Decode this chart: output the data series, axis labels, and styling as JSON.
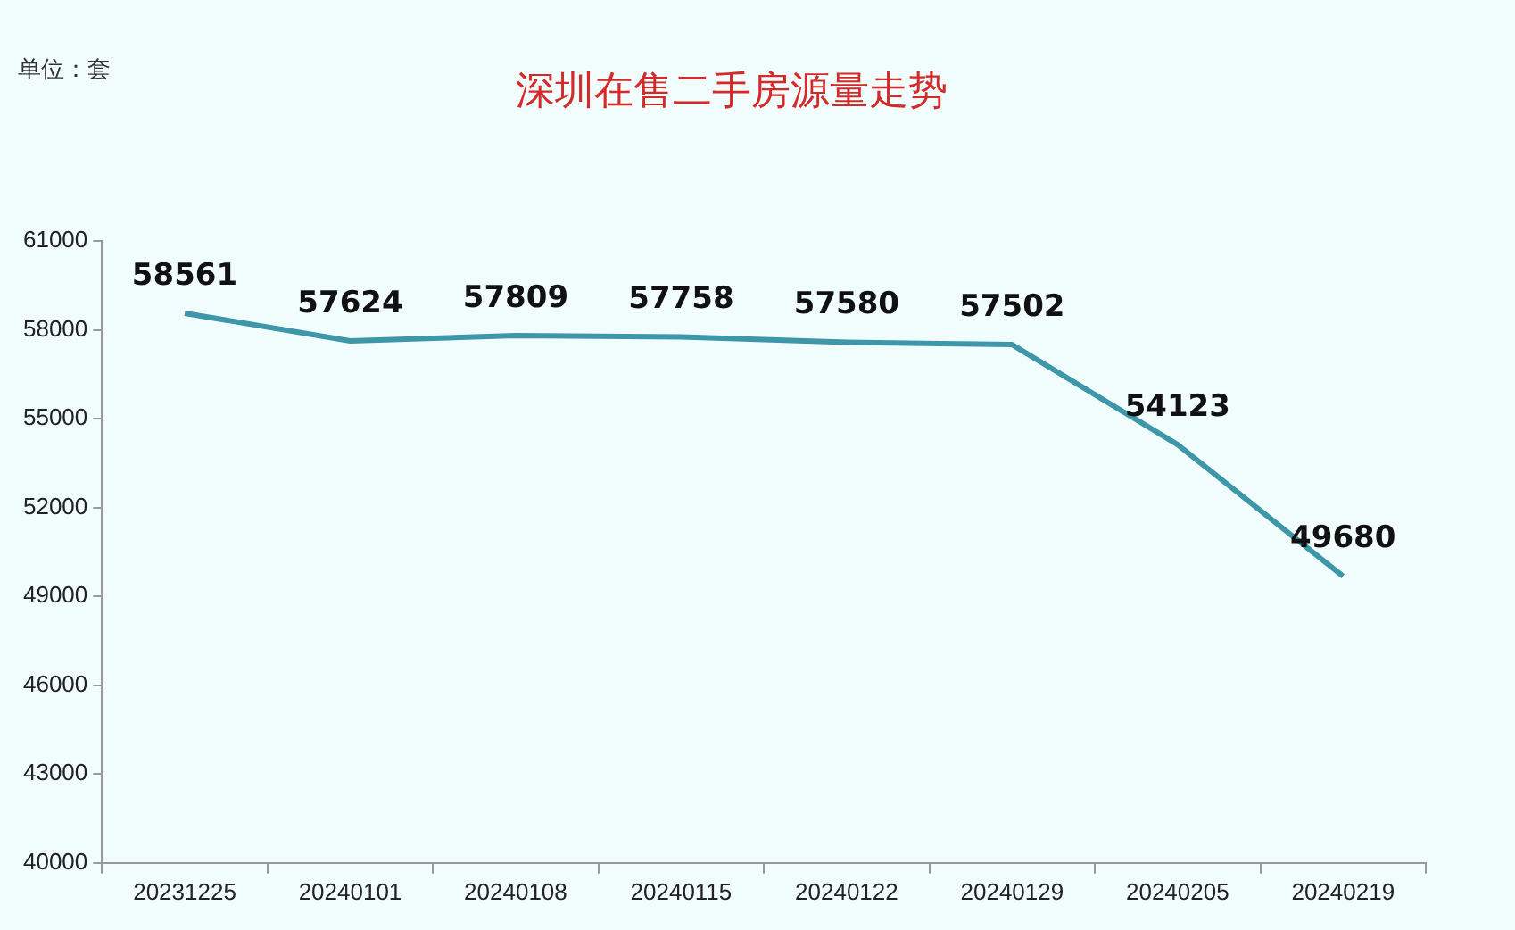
{
  "chart_data": {
    "type": "line",
    "title": "深圳在售二手房源量走势",
    "annotations": [
      "单位：套"
    ],
    "categories": [
      "20231225",
      "20240101",
      "20240108",
      "20240115",
      "20240122",
      "20240129",
      "20240205",
      "20240219"
    ],
    "series": [
      {
        "color": "#3d97a8",
        "values": [
          58561,
          57624,
          57809,
          57758,
          57580,
          57502,
          54123,
          49680
        ]
      }
    ],
    "ylim": [
      40000,
      61000
    ],
    "yticks": [
      40000,
      43000,
      46000,
      49000,
      52000,
      55000,
      58000,
      61000
    ],
    "grid": false,
    "legend": false,
    "marker": "none",
    "line_style": "solid",
    "data_labels": true
  }
}
